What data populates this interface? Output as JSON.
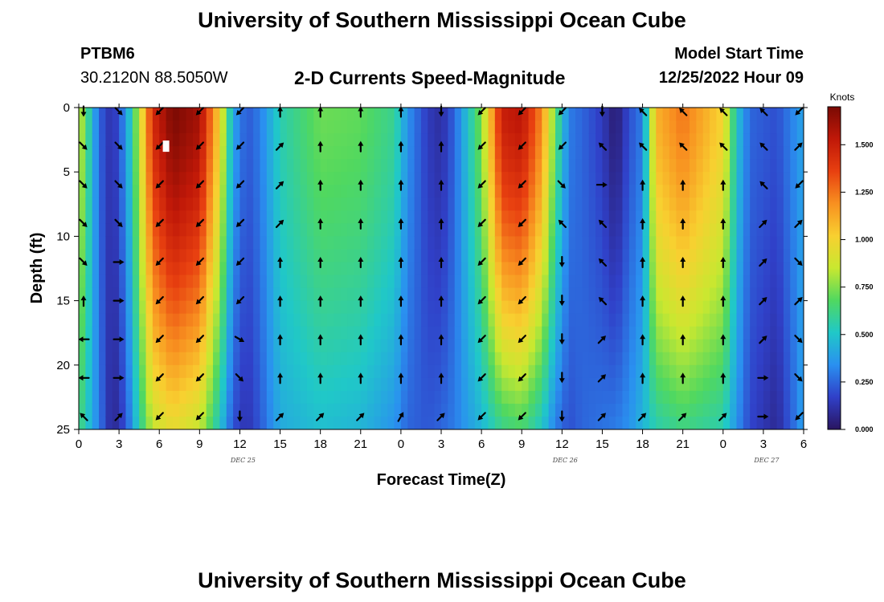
{
  "header": {
    "title": "University of Southern Mississippi Ocean Cube",
    "station": "PTBM6",
    "coords": "30.2120N  88.5050W",
    "subtitle": "2-D Currents Speed-Magnitude",
    "start_label": "Model Start Time",
    "start_value": "12/25/2022 Hour 09"
  },
  "footer": {
    "title": "University of Southern Mississippi Ocean Cube"
  },
  "colors": {
    "scale": [
      "#2a1560",
      "#3040c8",
      "#2a90f0",
      "#20c8c8",
      "#50d860",
      "#c8e830",
      "#f8d030",
      "#f89020",
      "#e84010",
      "#c01808",
      "#7a0a04"
    ],
    "arrow": "#000000",
    "marker": "#ffffff"
  },
  "chart_data": {
    "type": "heatmap",
    "title": "2-D Currents Speed-Magnitude",
    "xlabel": "Forecast Time(Z)",
    "ylabel": "Depth (ft)",
    "x_unit": "forecast hour",
    "xlim": [
      0,
      54
    ],
    "ylim": [
      0,
      25
    ],
    "y_inverted": true,
    "x_ticks": [
      0,
      3,
      6,
      9,
      12,
      15,
      18,
      21,
      24,
      27,
      30,
      33,
      36,
      39,
      42,
      45,
      48,
      51,
      54
    ],
    "x_tick_labels": [
      "0",
      "3",
      "6",
      "9",
      "12",
      "15",
      "18",
      "21",
      "0",
      "3",
      "6",
      "9",
      "12",
      "15",
      "18",
      "21",
      "0",
      "3",
      "6"
    ],
    "y_ticks": [
      0,
      5,
      10,
      15,
      20,
      25
    ],
    "y_tick_labels": [
      "0",
      "5",
      "10",
      "15",
      "20",
      "25"
    ],
    "date_labels": [
      {
        "hour": 12,
        "label": "DEC 25"
      },
      {
        "hour": 36,
        "label": "DEC 26"
      },
      {
        "hour": 51,
        "label": "DEC 27"
      }
    ],
    "colorbar": {
      "unit": "Knots",
      "min": 0,
      "max": 1.7,
      "ticks": [
        0,
        0.25,
        0.5,
        0.75,
        1.0,
        1.25,
        1.5
      ],
      "tick_labels": [
        "0.000",
        "0.250",
        "0.500",
        "0.750",
        "1.000",
        "1.250",
        "1.500"
      ]
    },
    "profile_hours": [
      0,
      1.5,
      2.5,
      3.5,
      4.5,
      5.5,
      7,
      9,
      10.5,
      11.5,
      12.5,
      13.5,
      15,
      18,
      21,
      23.5,
      24.5,
      26,
      27,
      28,
      29,
      30,
      31.5,
      33,
      34.5,
      35.5,
      36.5,
      37.5,
      39,
      40,
      41,
      42,
      43,
      45,
      48,
      49,
      50,
      52,
      53.5,
      54
    ],
    "speed_profiles": [
      {
        "hour": 0,
        "surface": 0.9,
        "bottom": 0.65
      },
      {
        "hour": 1.5,
        "surface": 0.25,
        "bottom": 0.3
      },
      {
        "hour": 2.5,
        "surface": 0.1,
        "bottom": 0.06
      },
      {
        "hour": 3.5,
        "surface": 0.35,
        "bottom": 0.2
      },
      {
        "hour": 4.5,
        "surface": 0.85,
        "bottom": 0.55
      },
      {
        "hour": 5.5,
        "surface": 1.45,
        "bottom": 0.85
      },
      {
        "hour": 7,
        "surface": 1.7,
        "bottom": 0.95
      },
      {
        "hour": 9,
        "surface": 1.6,
        "bottom": 0.85
      },
      {
        "hour": 10.5,
        "surface": 1.0,
        "bottom": 0.5
      },
      {
        "hour": 11.5,
        "surface": 0.4,
        "bottom": 0.2
      },
      {
        "hour": 12.5,
        "surface": 0.22,
        "bottom": 0.12
      },
      {
        "hour": 13.5,
        "surface": 0.3,
        "bottom": 0.22
      },
      {
        "hour": 15,
        "surface": 0.55,
        "bottom": 0.42
      },
      {
        "hour": 18,
        "surface": 0.72,
        "bottom": 0.48
      },
      {
        "hour": 21,
        "surface": 0.7,
        "bottom": 0.45
      },
      {
        "hour": 23.5,
        "surface": 0.6,
        "bottom": 0.35
      },
      {
        "hour": 24.5,
        "surface": 0.35,
        "bottom": 0.25
      },
      {
        "hour": 26,
        "surface": 0.15,
        "bottom": 0.22
      },
      {
        "hour": 27,
        "surface": 0.1,
        "bottom": 0.25
      },
      {
        "hour": 28,
        "surface": 0.25,
        "bottom": 0.3
      },
      {
        "hour": 29,
        "surface": 0.5,
        "bottom": 0.38
      },
      {
        "hour": 30,
        "surface": 0.75,
        "bottom": 0.45
      },
      {
        "hour": 31.5,
        "surface": 1.5,
        "bottom": 0.6
      },
      {
        "hour": 33,
        "surface": 1.55,
        "bottom": 0.65
      },
      {
        "hour": 34.5,
        "surface": 1.2,
        "bottom": 0.5
      },
      {
        "hour": 35.5,
        "surface": 0.7,
        "bottom": 0.3
      },
      {
        "hour": 36.5,
        "surface": 0.3,
        "bottom": 0.2
      },
      {
        "hour": 37.5,
        "surface": 0.25,
        "bottom": 0.25
      },
      {
        "hour": 39,
        "surface": 0.15,
        "bottom": 0.28
      },
      {
        "hour": 40,
        "surface": 0.02,
        "bottom": 0.3
      },
      {
        "hour": 41,
        "surface": 0.2,
        "bottom": 0.35
      },
      {
        "hour": 42,
        "surface": 0.3,
        "bottom": 0.45
      },
      {
        "hour": 43,
        "surface": 1.1,
        "bottom": 0.55
      },
      {
        "hour": 45,
        "surface": 1.25,
        "bottom": 0.62
      },
      {
        "hour": 48,
        "surface": 1.0,
        "bottom": 0.55
      },
      {
        "hour": 49,
        "surface": 0.5,
        "bottom": 0.35
      },
      {
        "hour": 50,
        "surface": 0.25,
        "bottom": 0.18
      },
      {
        "hour": 52,
        "surface": 0.2,
        "bottom": 0.08
      },
      {
        "hour": 53.5,
        "surface": 0.35,
        "bottom": 0.3
      },
      {
        "hour": 54,
        "surface": 0.4,
        "bottom": 0.4
      }
    ],
    "arrow_hours": [
      0,
      3,
      6,
      9,
      12,
      15,
      18,
      21,
      24,
      27,
      30,
      33,
      36,
      39,
      42,
      45,
      48,
      51,
      54
    ],
    "arrow_depths": [
      0,
      3,
      6,
      9,
      12,
      15,
      18,
      21,
      24
    ],
    "arrow_directions_deg": [
      [
        180,
        135,
        135,
        135,
        135,
        0,
        270,
        270,
        315
      ],
      [
        135,
        135,
        135,
        135,
        90,
        90,
        90,
        90,
        45
      ],
      [
        225,
        225,
        225,
        225,
        225,
        225,
        225,
        225,
        225
      ],
      [
        225,
        225,
        225,
        225,
        225,
        225,
        225,
        225,
        225
      ],
      [
        225,
        225,
        225,
        225,
        225,
        225,
        120,
        135,
        180
      ],
      [
        0,
        45,
        45,
        45,
        0,
        0,
        0,
        0,
        45
      ],
      [
        0,
        0,
        0,
        0,
        0,
        0,
        0,
        0,
        45
      ],
      [
        0,
        0,
        0,
        0,
        0,
        0,
        0,
        0,
        45
      ],
      [
        0,
        0,
        0,
        0,
        0,
        0,
        0,
        0,
        30
      ],
      [
        180,
        0,
        0,
        0,
        0,
        0,
        0,
        0,
        45
      ],
      [
        225,
        225,
        225,
        225,
        225,
        225,
        225,
        225,
        225
      ],
      [
        225,
        225,
        225,
        225,
        225,
        225,
        225,
        225,
        225
      ],
      [
        225,
        225,
        135,
        315,
        180,
        180,
        180,
        180,
        180
      ],
      [
        180,
        315,
        90,
        315,
        315,
        315,
        45,
        45,
        45
      ],
      [
        315,
        315,
        0,
        0,
        0,
        0,
        0,
        0,
        45
      ],
      [
        315,
        315,
        0,
        0,
        0,
        0,
        0,
        0,
        45
      ],
      [
        315,
        315,
        0,
        0,
        0,
        0,
        0,
        0,
        45
      ],
      [
        315,
        315,
        315,
        45,
        45,
        45,
        45,
        90,
        90
      ],
      [
        225,
        45,
        225,
        45,
        135,
        45,
        135,
        135,
        225
      ]
    ],
    "marker": {
      "hour": 6.5,
      "depth": 3
    }
  }
}
